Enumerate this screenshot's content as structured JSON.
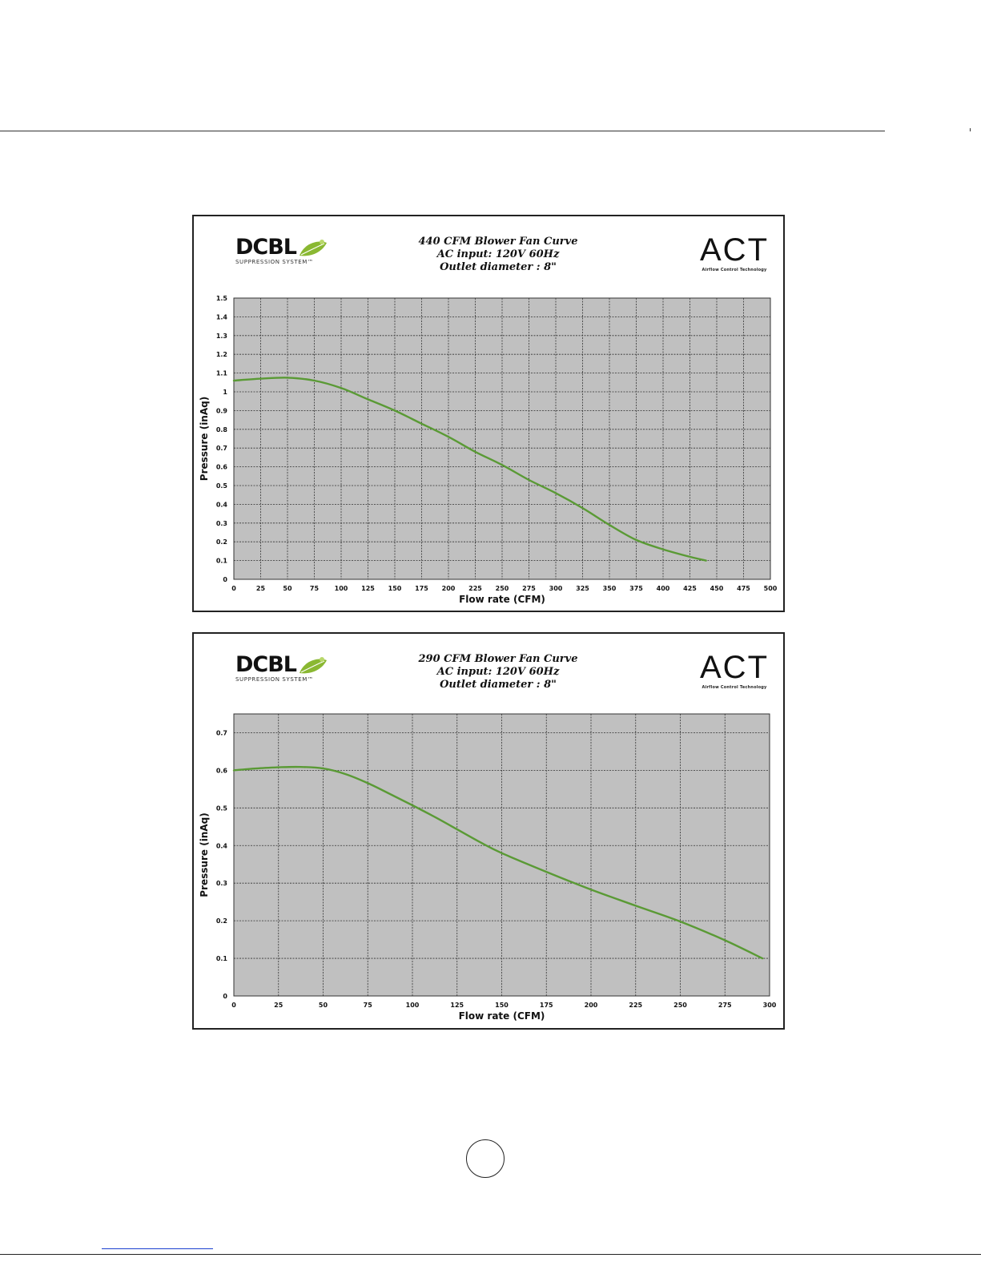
{
  "page": {
    "colors": {
      "plot_bg": "#c0c0c0",
      "grid": "#333333",
      "curve": "#5a9a35",
      "leaf": "#8ab832"
    }
  },
  "logos": {
    "brand_name": "DCBL",
    "brand_sub": "SUPPRESSION SYSTEM™",
    "act_name": "ACT",
    "act_sub": "Airflow Control Technology"
  },
  "chart_data": [
    {
      "type": "line",
      "title_lines": [
        "440 CFM Blower Fan Curve",
        "AC input: 120V  60Hz",
        "Outlet diameter : 8\""
      ],
      "xlabel": "Flow rate (CFM)",
      "ylabel": "Pressure (inAq)",
      "xlim": [
        0,
        500
      ],
      "ylim": [
        0,
        1.5
      ],
      "xticks": [
        0,
        25,
        50,
        75,
        100,
        125,
        150,
        175,
        200,
        225,
        250,
        275,
        300,
        325,
        350,
        375,
        400,
        425,
        450,
        475,
        500
      ],
      "yticks": [
        0,
        0.1,
        0.2,
        0.3,
        0.4,
        0.5,
        0.6,
        0.7,
        0.8,
        0.9,
        1,
        1.1,
        1.2,
        1.3,
        1.4,
        1.5
      ],
      "ytick_labels": [
        "0",
        "0.1",
        "0.2",
        "0.3",
        "0.4",
        "0.5",
        "0.6",
        "0.7",
        "0.8",
        "0.9",
        "1",
        "1.1",
        "1.2",
        "1.3",
        "1.4",
        "1.5"
      ],
      "grid": true,
      "series": [
        {
          "x": [
            0,
            25,
            50,
            75,
            100,
            125,
            150,
            175,
            200,
            225,
            250,
            275,
            300,
            325,
            350,
            375,
            400,
            425,
            440
          ],
          "y": [
            1.06,
            1.07,
            1.075,
            1.06,
            1.02,
            0.96,
            0.9,
            0.83,
            0.76,
            0.68,
            0.61,
            0.53,
            0.46,
            0.38,
            0.29,
            0.21,
            0.16,
            0.12,
            0.1
          ]
        }
      ]
    },
    {
      "type": "line",
      "title_lines": [
        "290 CFM Blower Fan Curve",
        "AC input: 120V  60Hz",
        "Outlet diameter : 8\""
      ],
      "xlabel": "Flow rate (CFM)",
      "ylabel": "Pressure (inAq)",
      "xlim": [
        0,
        300
      ],
      "ylim": [
        0,
        0.75
      ],
      "xticks": [
        0,
        25,
        50,
        75,
        100,
        125,
        150,
        175,
        200,
        225,
        250,
        275,
        300
      ],
      "yticks": [
        0,
        0.1,
        0.2,
        0.3,
        0.4,
        0.5,
        0.6,
        0.7
      ],
      "ytick_labels": [
        "0",
        "0.1",
        "0.2",
        "0.3",
        "0.4",
        "0.5",
        "0.6",
        "0.7"
      ],
      "grid": true,
      "series": [
        {
          "x": [
            0,
            12.5,
            25,
            37.5,
            50,
            62.5,
            75,
            87.5,
            100,
            112.5,
            125,
            137.5,
            150,
            175,
            200,
            225,
            250,
            275,
            296
          ],
          "y": [
            0.6,
            0.605,
            0.608,
            0.609,
            0.605,
            0.59,
            0.566,
            0.537,
            0.507,
            0.476,
            0.443,
            0.41,
            0.38,
            0.33,
            0.283,
            0.24,
            0.198,
            0.148,
            0.1
          ]
        }
      ]
    }
  ]
}
